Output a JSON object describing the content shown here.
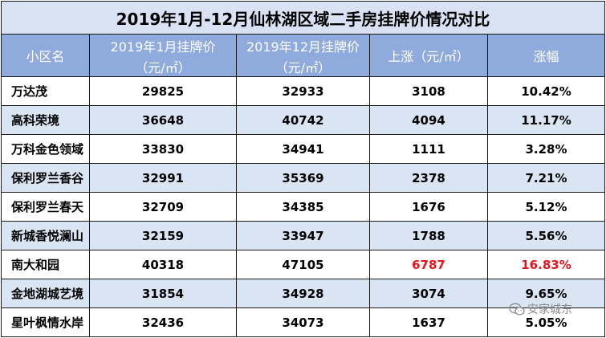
{
  "title": "2019年1月-12月仙林湖区域二手房挂牌价情况对比",
  "headers": {
    "name": "小区名",
    "jan": "2019年1月挂牌价",
    "jan_unit": "（元/㎡）",
    "dec": "2019年12月挂牌价",
    "dec_unit": "（元/㎡）",
    "rise": "上涨（元/㎡）",
    "pct": "涨幅"
  },
  "chart_data": {
    "type": "table",
    "title": "2019年1月-12月仙林湖区域二手房挂牌价情况对比",
    "columns": [
      "小区名",
      "2019年1月挂牌价（元/㎡）",
      "2019年12月挂牌价（元/㎡）",
      "上涨（元/㎡）",
      "涨幅"
    ],
    "rows": [
      {
        "name": "万达茂",
        "jan": 29825,
        "dec": 32933,
        "rise": 3108,
        "pct": "10.42%",
        "highlight": false
      },
      {
        "name": "高科荣境",
        "jan": 36648,
        "dec": 40742,
        "rise": 4094,
        "pct": "11.17%",
        "highlight": false
      },
      {
        "name": "万科金色领域",
        "jan": 33830,
        "dec": 34941,
        "rise": 1111,
        "pct": "3.28%",
        "highlight": false
      },
      {
        "name": "保利罗兰香谷",
        "jan": 32991,
        "dec": 35369,
        "rise": 2378,
        "pct": "7.21%",
        "highlight": false
      },
      {
        "name": "保利罗兰春天",
        "jan": 32709,
        "dec": 34385,
        "rise": 1676,
        "pct": "5.12%",
        "highlight": false
      },
      {
        "name": "新城香悦澜山",
        "jan": 32159,
        "dec": 33947,
        "rise": 1788,
        "pct": "5.56%",
        "highlight": false
      },
      {
        "name": "南大和园",
        "jan": 40318,
        "dec": 47105,
        "rise": 6787,
        "pct": "16.83%",
        "highlight": true
      },
      {
        "name": "金地湖城艺境",
        "jan": 31854,
        "dec": 34928,
        "rise": 3074,
        "pct": "9.65%",
        "highlight": false
      },
      {
        "name": "星叶枫情水岸",
        "jan": 32436,
        "dec": 34073,
        "rise": 1637,
        "pct": "5.05%",
        "highlight": false
      }
    ]
  },
  "colors": {
    "title_bg": "#d9e2f3",
    "header_bg": "#8faadc",
    "stripe_bg": "#dae5f3",
    "highlight": "#e8141b"
  },
  "watermark": {
    "icon": "wechat-icon",
    "text": "安家城东"
  }
}
